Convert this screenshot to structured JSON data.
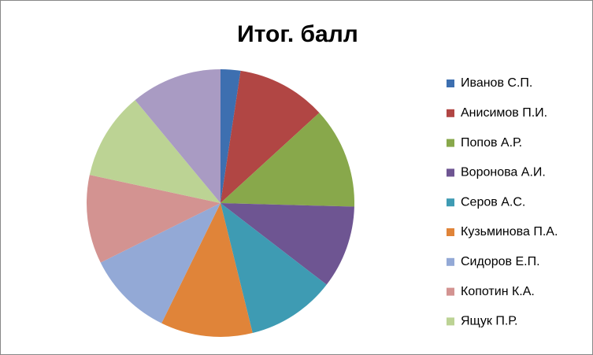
{
  "chart_data": {
    "type": "pie",
    "title": "Итог. балл",
    "categories": [
      "Иванов С.П.",
      "Анисимов П.И.",
      "Попов А.Р.",
      "Воронова А.И.",
      "Серов А.С.",
      "Кузьминова П.А.",
      "Сидоров Е.П.",
      "Копотин К.А.",
      "Ящук П.Р.",
      null
    ],
    "values": [
      2.4,
      10.8,
      12.2,
      10,
      10.7,
      11.1,
      10.4,
      10.7,
      10.6,
      11
    ],
    "colors": [
      "#3d6fb0",
      "#b14644",
      "#88a84b",
      "#6e5592",
      "#3e9bb3",
      "#e08439",
      "#93a9d6",
      "#d39391",
      "#bcd394",
      "#a99bc3"
    ],
    "legend": "right"
  }
}
